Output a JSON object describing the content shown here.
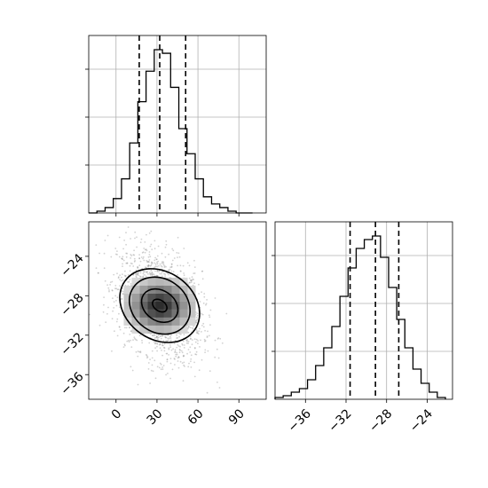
{
  "chart_data": {
    "type": "corner",
    "grid": true,
    "colors": {
      "hist": "#000000",
      "points": "#7f7f7f",
      "grid": "#b0b0b0"
    },
    "panels": [
      {
        "id": "marginal-x",
        "type": "histogram",
        "xlim": [
          -20,
          110
        ],
        "bins": [
          [
            -20,
            -14
          ],
          [
            -14,
            -8
          ],
          [
            -8,
            -2
          ],
          [
            -2,
            4
          ],
          [
            4,
            10
          ],
          [
            10,
            16
          ],
          [
            16,
            22
          ],
          [
            22,
            28
          ],
          [
            28,
            34
          ],
          [
            34,
            40
          ],
          [
            40,
            46
          ],
          [
            46,
            52
          ],
          [
            52,
            58
          ],
          [
            58,
            64
          ],
          [
            64,
            70
          ],
          [
            70,
            76
          ],
          [
            76,
            82
          ],
          [
            82,
            88
          ],
          [
            88,
            94
          ],
          [
            94,
            100
          ]
        ],
        "counts": [
          0.0,
          0.01,
          0.03,
          0.08,
          0.19,
          0.39,
          0.62,
          0.79,
          0.91,
          0.89,
          0.7,
          0.47,
          0.33,
          0.19,
          0.09,
          0.05,
          0.03,
          0.01,
          0.0,
          0.0
        ],
        "quantiles": [
          17,
          32,
          51
        ],
        "xticks": [
          0,
          30,
          60,
          90
        ]
      },
      {
        "id": "joint",
        "type": "2d-density",
        "xlim": [
          -20,
          110
        ],
        "ylim": [
          -38.5,
          -20.5
        ],
        "center": [
          32,
          -29
        ],
        "spread": [
          15.5,
          2.8
        ],
        "correlation": 0.33,
        "contour_levels": 4,
        "xticks": [
          0,
          30,
          60,
          90
        ],
        "yticks": [
          -24,
          -28,
          -32,
          -36
        ],
        "xtick_labels": [
          "0",
          "30",
          "60",
          "90"
        ],
        "ytick_labels": [
          "−24",
          "−28",
          "−32",
          "−36"
        ]
      },
      {
        "id": "marginal-y",
        "type": "histogram",
        "xlim": [
          -39,
          -21.5
        ],
        "bins": [
          [
            -39,
            -38.2
          ],
          [
            -38.2,
            -37.4
          ],
          [
            -37.4,
            -36.6
          ],
          [
            -36.6,
            -35.8
          ],
          [
            -35.8,
            -35
          ],
          [
            -35,
            -34.2
          ],
          [
            -34.2,
            -33.4
          ],
          [
            -33.4,
            -32.6
          ],
          [
            -32.6,
            -31.8
          ],
          [
            -31.8,
            -31
          ],
          [
            -31,
            -30.2
          ],
          [
            -30.2,
            -29.4
          ],
          [
            -29.4,
            -28.6
          ],
          [
            -28.6,
            -27.8
          ],
          [
            -27.8,
            -27
          ],
          [
            -27,
            -26.2
          ],
          [
            -26.2,
            -25.4
          ],
          [
            -25.4,
            -24.6
          ],
          [
            -24.6,
            -23.8
          ],
          [
            -23.8,
            -23
          ],
          [
            -23,
            -22.2
          ]
        ],
        "counts": [
          0.01,
          0.02,
          0.04,
          0.06,
          0.11,
          0.19,
          0.29,
          0.41,
          0.58,
          0.74,
          0.85,
          0.9,
          0.92,
          0.8,
          0.63,
          0.45,
          0.29,
          0.17,
          0.09,
          0.04,
          0.01
        ],
        "quantiles": [
          -31.6,
          -29.1,
          -26.8
        ],
        "xticks": [
          -36,
          -32,
          -28,
          -24
        ],
        "xtick_labels": [
          "−36",
          "−32",
          "−28",
          "−24"
        ]
      }
    ]
  }
}
